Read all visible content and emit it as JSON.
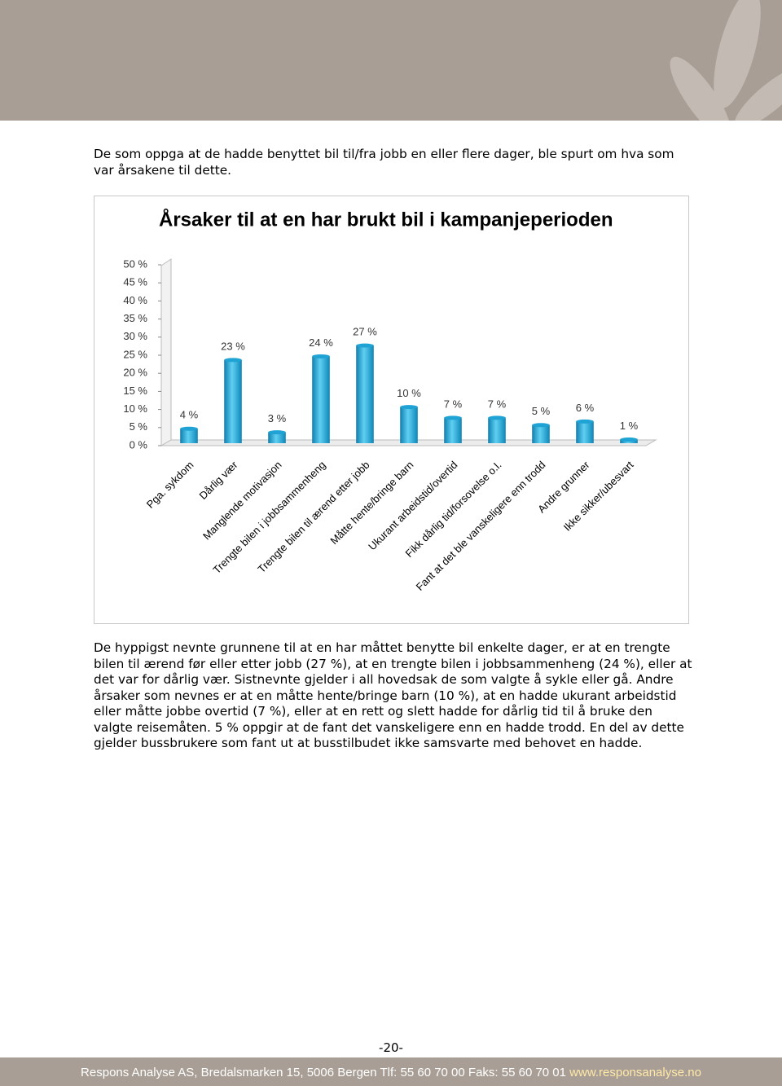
{
  "intro": "De som oppga at de hadde benyttet bil til/fra jobb en eller flere dager, ble spurt om hva som var årsakene til dette.",
  "chart_data": {
    "type": "bar",
    "title": "Årsaker til at en har brukt bil i kampanjeperioden",
    "categories": [
      "Pga. sykdom",
      "Dårlig vær",
      "Manglende motivasjon",
      "Trengte bilen i jobbsammenheng",
      "Trengte bilen til ærend etter jobb",
      "Måtte hente/bringe barn",
      "Ukurant arbeidstid/overtid",
      "Fikk dårlig tid/forsovelse o.l.",
      "Fant at det ble vanskeligere enn trodd",
      "Andre grunner",
      "Ikke sikker/ubesvart"
    ],
    "values": [
      4,
      23,
      3,
      24,
      27,
      10,
      7,
      7,
      5,
      6,
      1
    ],
    "value_labels": [
      "4 %",
      "23 %",
      "3 %",
      "24 %",
      "27 %",
      "10 %",
      "7 %",
      "7 %",
      "5 %",
      "6 %",
      "1 %"
    ],
    "color": "#1fa2d4",
    "ylim": [
      0,
      50
    ],
    "yticks": [
      {
        "value": 0,
        "label": "0 %"
      },
      {
        "value": 5,
        "label": "5 %"
      },
      {
        "value": 10,
        "label": "10 %"
      },
      {
        "value": 15,
        "label": "15 %"
      },
      {
        "value": 20,
        "label": "20 %"
      },
      {
        "value": 25,
        "label": "25 %"
      },
      {
        "value": 30,
        "label": "30 %"
      },
      {
        "value": 35,
        "label": "35 %"
      },
      {
        "value": 40,
        "label": "40 %"
      },
      {
        "value": 45,
        "label": "45 %"
      },
      {
        "value": 50,
        "label": "50 %"
      }
    ],
    "grid": false
  },
  "body": "De hyppigst nevnte grunnene til at en har måttet benytte bil enkelte dager, er at en trengte bilen til ærend før eller etter jobb (27 %), at en trengte bilen i jobbsammenheng (24 %), eller at det var for dårlig vær. Sistnevnte gjelder i all hovedsak de som valgte å sykle eller gå. Andre årsaker som nevnes er at en måtte hente/bringe barn (10 %), at en hadde ukurant arbeidstid eller måtte jobbe overtid (7 %), eller at en rett og slett hadde for dårlig tid til å bruke den valgte reisemåten. 5 % oppgir at de fant det vanskeligere enn en hadde trodd. En del av dette gjelder bussbrukere som fant ut at busstilbudet ikke samsvarte med behovet en hadde.",
  "page_number": "-20-",
  "footer": {
    "text": "Respons Analyse AS, Bredalsmarken 15, 5006 Bergen Tlf: 55 60 70 00 Faks: 55 60 70 01",
    "link": "www.responsanalyse.no"
  }
}
